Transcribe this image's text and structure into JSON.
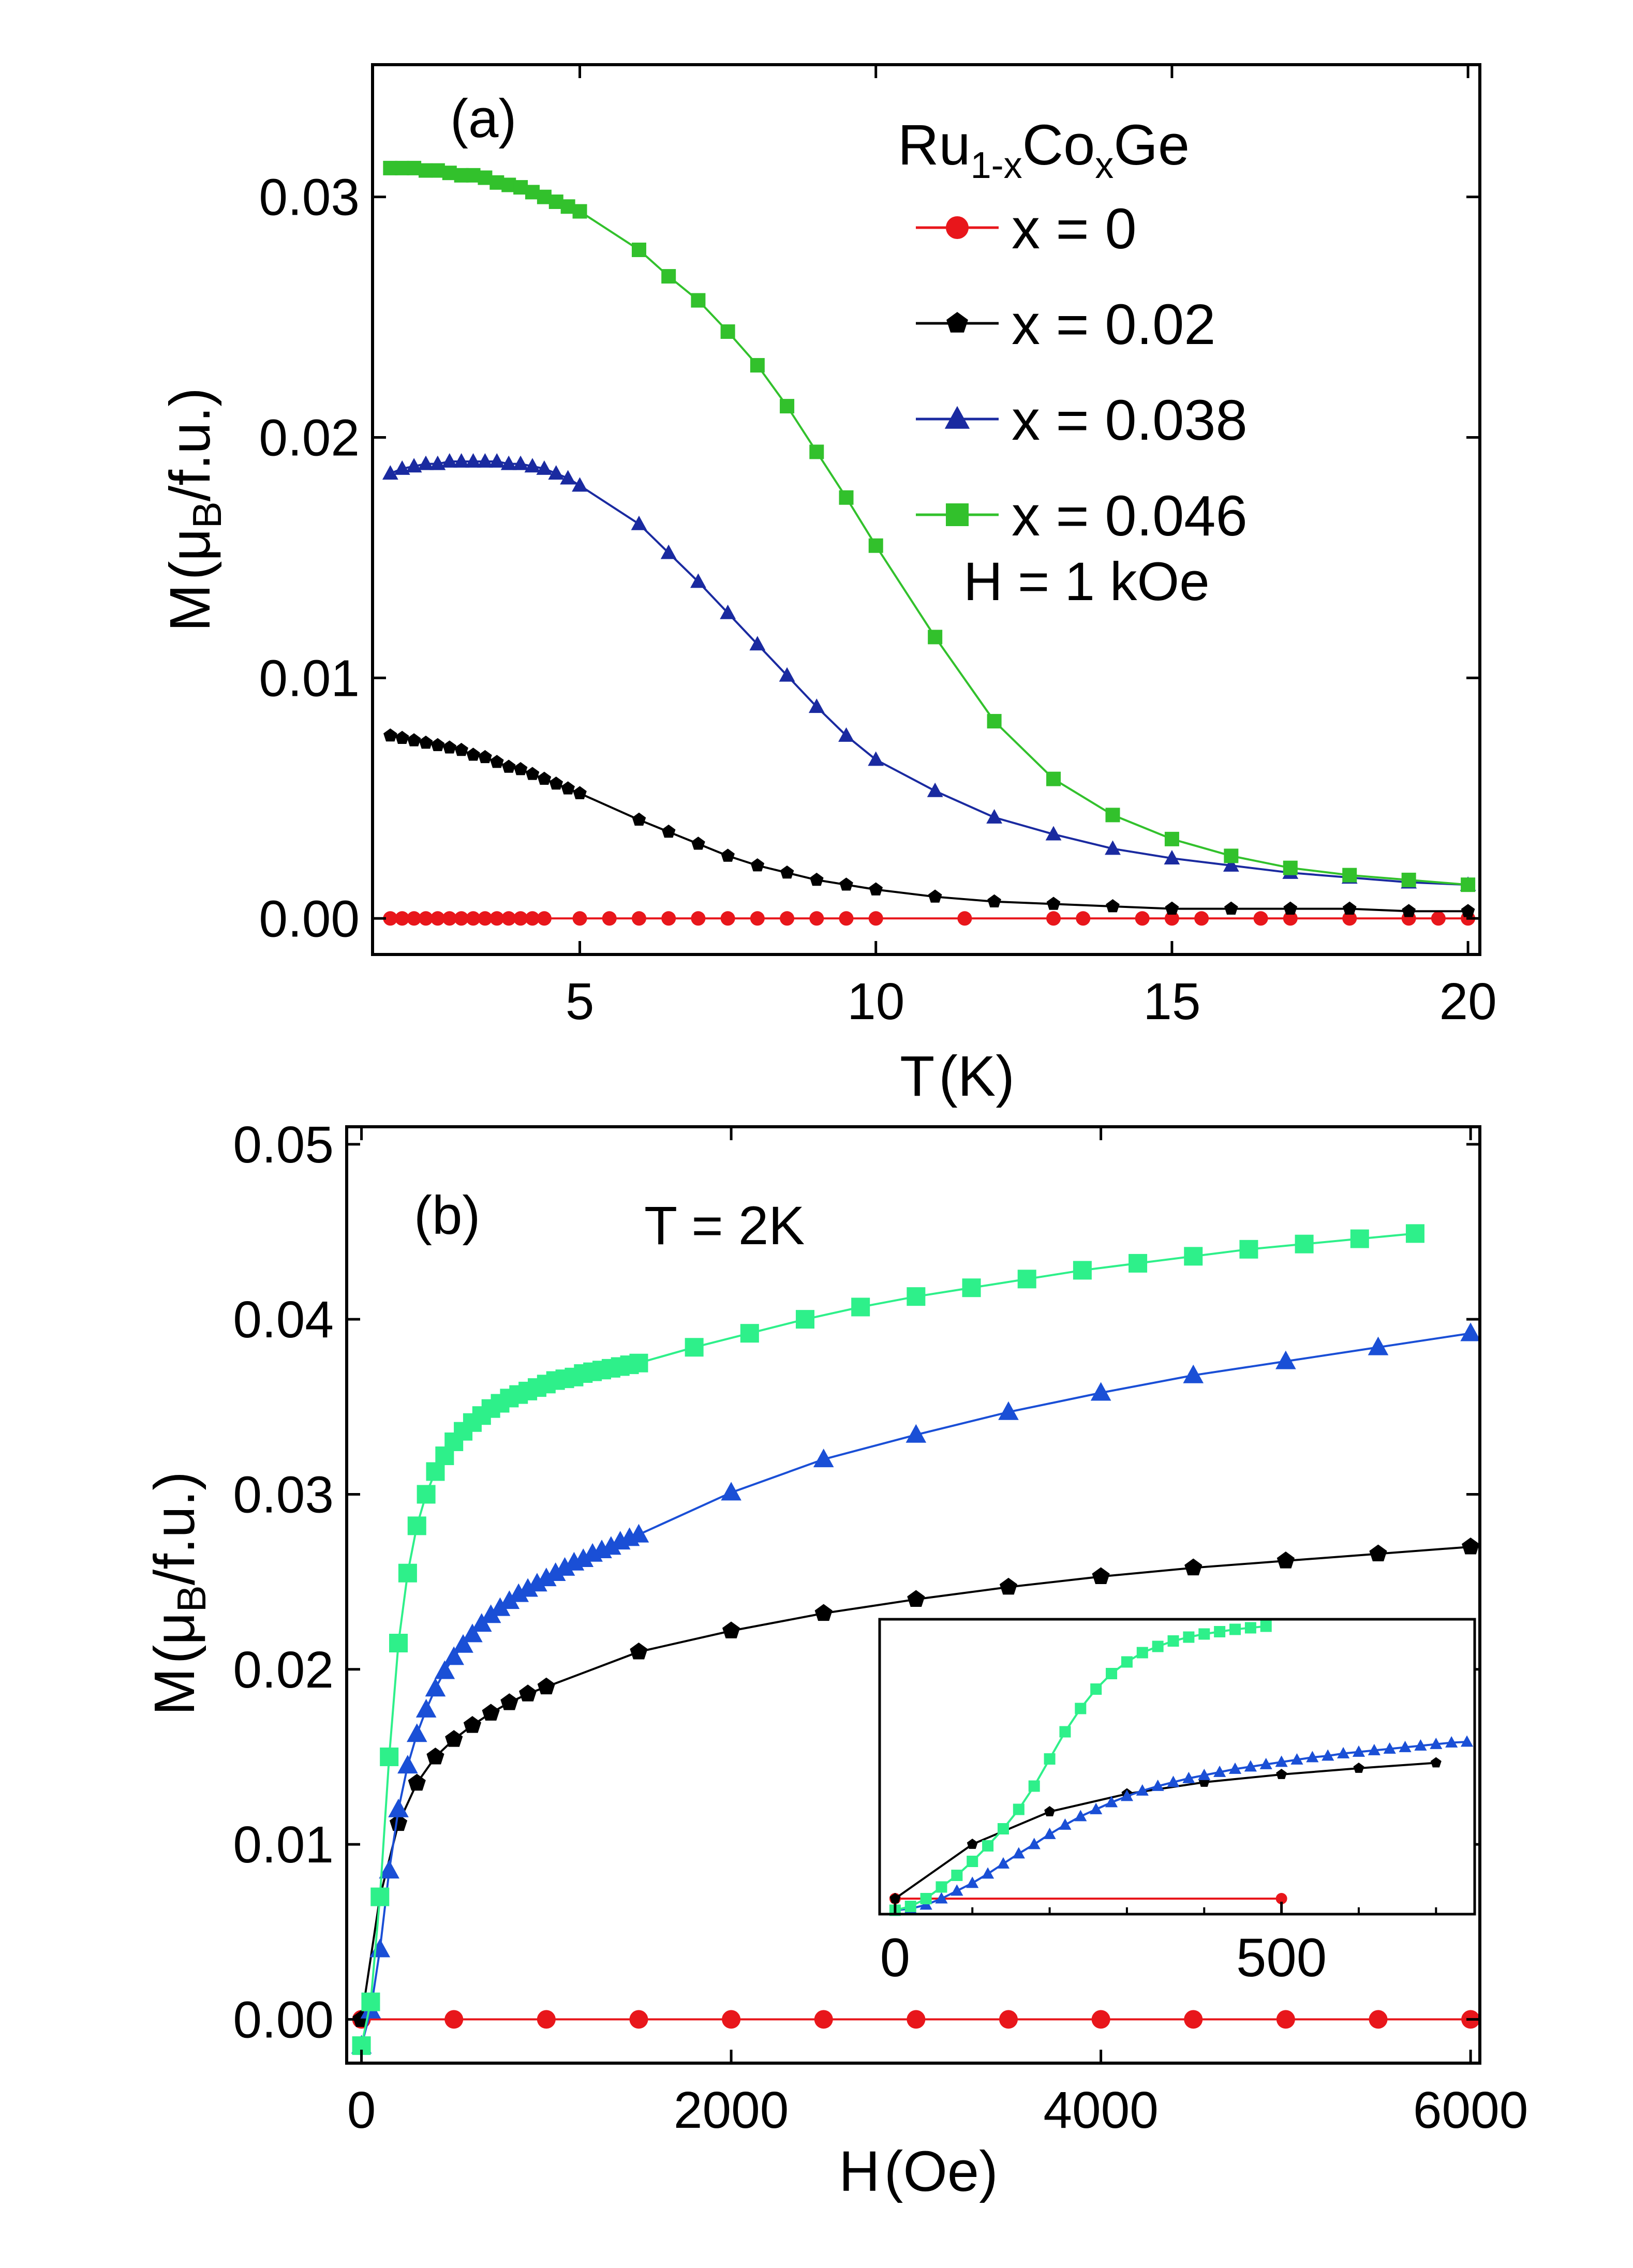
{
  "chart_data": [
    {
      "id": "a",
      "type": "line",
      "panel_label": "(a)",
      "title": "",
      "xlabel_main": "T",
      "xlabel_unit": "(K)",
      "ylabel": "M(μB/f.u.)",
      "ylabel_prefix": "M",
      "ylabel_unit_pre": "(μ",
      "ylabel_unit_sub": "B",
      "ylabel_unit_post": "/f.u.)",
      "xlim": [
        1.5,
        20.2
      ],
      "ylim": [
        -0.0015,
        0.0355
      ],
      "xticks": [
        5,
        10,
        15,
        20
      ],
      "xtick_labels": [
        "5",
        "10",
        "15",
        "20"
      ],
      "yticks": [
        0.0,
        0.01,
        0.02,
        0.03
      ],
      "ytick_labels": [
        "0.00",
        "0.01",
        "0.02",
        "0.03"
      ],
      "legend_title_main": "Ru",
      "legend_title_sub1": "1-x",
      "legend_title_mid": "Co",
      "legend_title_sub2": "x",
      "legend_title_end": "Ge",
      "legend_position": "top-right",
      "annotation": "H = 1 kOe",
      "series": [
        {
          "name": "x = 0",
          "color": "#e8161b",
          "marker": "circle",
          "x": [
            1.8,
            2.0,
            2.2,
            2.4,
            2.6,
            2.8,
            3.0,
            3.2,
            3.4,
            3.6,
            3.8,
            4.0,
            4.2,
            4.4,
            5.0,
            5.5,
            6.0,
            6.5,
            7.0,
            7.5,
            8.0,
            8.5,
            9.0,
            9.5,
            10.0,
            11.5,
            13.0,
            13.5,
            14.5,
            15.0,
            15.5,
            16.5,
            17.0,
            18.0,
            19.0,
            19.5,
            20.0
          ],
          "y": [
            0,
            0,
            0,
            0,
            0,
            0,
            0,
            0,
            0,
            0,
            0,
            0,
            0,
            0,
            0,
            0,
            0,
            0,
            0,
            0,
            0,
            0,
            0,
            0,
            0,
            0,
            0,
            0,
            0,
            0,
            0,
            0,
            0,
            0,
            0,
            0,
            0
          ]
        },
        {
          "name": "x = 0.02",
          "color": "#000000",
          "marker": "pentagon",
          "x": [
            1.8,
            2.0,
            2.2,
            2.4,
            2.6,
            2.8,
            3.0,
            3.2,
            3.4,
            3.6,
            3.8,
            4.0,
            4.2,
            4.4,
            4.6,
            4.8,
            5.0,
            6.0,
            6.5,
            7.0,
            7.5,
            8.0,
            8.5,
            9.0,
            9.5,
            10.0,
            11.0,
            12.0,
            13.0,
            14.0,
            15.0,
            16.0,
            17.0,
            18.0,
            19.0,
            20.0
          ],
          "y": [
            0.0076,
            0.0075,
            0.0074,
            0.0073,
            0.0072,
            0.0071,
            0.007,
            0.0068,
            0.0067,
            0.0065,
            0.0063,
            0.0062,
            0.006,
            0.0058,
            0.0056,
            0.0054,
            0.0052,
            0.0041,
            0.0036,
            0.0031,
            0.0026,
            0.0022,
            0.0019,
            0.0016,
            0.0014,
            0.0012,
            0.0009,
            0.0007,
            0.0006,
            0.0005,
            0.0004,
            0.0004,
            0.0004,
            0.0004,
            0.0003,
            0.0003
          ]
        },
        {
          "name": "x = 0.038",
          "color": "#1a2aa0",
          "marker": "triangle",
          "x": [
            1.8,
            2.0,
            2.2,
            2.4,
            2.6,
            2.8,
            3.0,
            3.2,
            3.4,
            3.6,
            3.8,
            4.0,
            4.2,
            4.4,
            4.6,
            4.8,
            5.0,
            6.0,
            6.5,
            7.0,
            7.5,
            8.0,
            8.5,
            9.0,
            9.5,
            10.0,
            11.0,
            12.0,
            13.0,
            14.0,
            15.0,
            16.0,
            17.0,
            18.0,
            19.0,
            20.0
          ],
          "y": [
            0.0185,
            0.0187,
            0.0188,
            0.0189,
            0.0189,
            0.019,
            0.019,
            0.019,
            0.019,
            0.019,
            0.0189,
            0.0189,
            0.0188,
            0.0187,
            0.0185,
            0.0183,
            0.018,
            0.0164,
            0.0152,
            0.014,
            0.0127,
            0.0114,
            0.0101,
            0.0088,
            0.0076,
            0.0066,
            0.0053,
            0.0042,
            0.0035,
            0.0029,
            0.0025,
            0.0022,
            0.0019,
            0.0017,
            0.0015,
            0.0014
          ]
        },
        {
          "name": "x = 0.046",
          "color": "#32c12c",
          "marker": "square",
          "x": [
            1.8,
            2.0,
            2.2,
            2.4,
            2.6,
            2.8,
            3.0,
            3.2,
            3.4,
            3.6,
            3.8,
            4.0,
            4.2,
            4.4,
            4.6,
            4.8,
            5.0,
            6.0,
            6.5,
            7.0,
            7.5,
            8.0,
            8.5,
            9.0,
            9.5,
            10.0,
            11.0,
            12.0,
            13.0,
            14.0,
            15.0,
            16.0,
            17.0,
            18.0,
            19.0,
            20.0
          ],
          "y": [
            0.0312,
            0.0312,
            0.0312,
            0.0311,
            0.0311,
            0.031,
            0.0309,
            0.0309,
            0.0308,
            0.0306,
            0.0305,
            0.0304,
            0.0302,
            0.03,
            0.0298,
            0.0296,
            0.0294,
            0.0278,
            0.0267,
            0.0257,
            0.0244,
            0.023,
            0.0213,
            0.0194,
            0.0175,
            0.0155,
            0.0117,
            0.0082,
            0.0058,
            0.0043,
            0.0033,
            0.0026,
            0.0021,
            0.0018,
            0.0016,
            0.0014
          ]
        }
      ]
    },
    {
      "id": "b",
      "type": "line",
      "panel_label": "(b)",
      "title": "",
      "xlabel_main": "H",
      "xlabel_unit": "(Oe)",
      "ylabel": "M(μB/f.u.)",
      "ylabel_prefix": "M",
      "ylabel_unit_pre": "(μ",
      "ylabel_unit_sub": "B",
      "ylabel_unit_post": "/f.u.)",
      "xlim": [
        -80,
        6050
      ],
      "ylim": [
        -0.0025,
        0.051
      ],
      "xticks": [
        0,
        2000,
        4000,
        6000
      ],
      "xtick_labels": [
        "0",
        "2000",
        "4000",
        "6000"
      ],
      "yticks": [
        0.0,
        0.01,
        0.02,
        0.03,
        0.04,
        0.05
      ],
      "ytick_labels": [
        "0.00",
        "0.01",
        "0.02",
        "0.03",
        "0.04",
        "0.05"
      ],
      "annotation": "T = 2K",
      "series": [
        {
          "name": "x = 0",
          "color": "#e8161b",
          "marker": "circle",
          "x": [
            0,
            500,
            1000,
            1500,
            2000,
            2500,
            3000,
            3500,
            4000,
            4500,
            5000,
            5500,
            6000
          ],
          "y": [
            0,
            0,
            0,
            0,
            0,
            0,
            0,
            0,
            0,
            0,
            0,
            0,
            0
          ]
        },
        {
          "name": "x = 0.02",
          "color": "#000000",
          "marker": "pentagon",
          "x": [
            0,
            100,
            200,
            300,
            400,
            500,
            600,
            700,
            800,
            900,
            1000,
            1500,
            2000,
            2500,
            3000,
            3500,
            4000,
            4500,
            5000,
            5500,
            6000
          ],
          "y": [
            0.0,
            0.007,
            0.0112,
            0.0135,
            0.015,
            0.016,
            0.0168,
            0.0175,
            0.0181,
            0.0186,
            0.019,
            0.021,
            0.0222,
            0.0232,
            0.024,
            0.0247,
            0.0253,
            0.0258,
            0.0262,
            0.0266,
            0.027
          ]
        },
        {
          "name": "x = 0.038",
          "color": "#1a4fd6",
          "marker": "triangle",
          "x": [
            0,
            50,
            100,
            150,
            200,
            250,
            300,
            350,
            400,
            450,
            500,
            550,
            600,
            650,
            700,
            750,
            800,
            850,
            900,
            950,
            1000,
            1050,
            1100,
            1150,
            1200,
            1250,
            1300,
            1350,
            1400,
            1450,
            1500,
            2000,
            2500,
            3000,
            3500,
            4000,
            4500,
            5000,
            5500,
            6000
          ],
          "y": [
            -0.0015,
            0.0005,
            0.004,
            0.0085,
            0.012,
            0.0145,
            0.0163,
            0.0177,
            0.0189,
            0.0199,
            0.0207,
            0.0214,
            0.022,
            0.0226,
            0.0231,
            0.0235,
            0.0239,
            0.0243,
            0.0246,
            0.0249,
            0.0252,
            0.0255,
            0.0258,
            0.0261,
            0.0263,
            0.0266,
            0.0268,
            0.027,
            0.0273,
            0.0275,
            0.0277,
            0.0301,
            0.032,
            0.0334,
            0.0347,
            0.0358,
            0.0368,
            0.0376,
            0.0384,
            0.0392
          ]
        },
        {
          "name": "x = 0.046",
          "color": "#2ef08a",
          "marker": "square",
          "x": [
            0,
            50,
            100,
            150,
            200,
            250,
            300,
            350,
            400,
            450,
            500,
            550,
            600,
            650,
            700,
            750,
            800,
            850,
            900,
            950,
            1000,
            1050,
            1100,
            1150,
            1200,
            1250,
            1300,
            1350,
            1400,
            1450,
            1500,
            1800,
            2100,
            2400,
            2700,
            3000,
            3300,
            3600,
            3900,
            4200,
            4500,
            4800,
            5100,
            5400,
            5700
          ],
          "y": [
            -0.0015,
            0.001,
            0.007,
            0.015,
            0.0215,
            0.0255,
            0.0282,
            0.03,
            0.0313,
            0.0322,
            0.033,
            0.0336,
            0.0341,
            0.0345,
            0.0349,
            0.0352,
            0.0355,
            0.0357,
            0.0359,
            0.0361,
            0.0363,
            0.0365,
            0.0366,
            0.0367,
            0.0369,
            0.037,
            0.0371,
            0.0372,
            0.0373,
            0.0374,
            0.0375,
            0.0384,
            0.0392,
            0.04,
            0.0407,
            0.0413,
            0.0418,
            0.0423,
            0.0428,
            0.0432,
            0.0436,
            0.044,
            0.0443,
            0.0446,
            0.0449
          ]
        }
      ],
      "inset": {
        "xlim": [
          -20,
          750
        ],
        "ylim": [
          -0.002,
          0.036
        ],
        "xticks": [
          0,
          500
        ],
        "xtick_labels": [
          "0",
          "500"
        ],
        "series": [
          {
            "name": "x = 0",
            "color": "#e8161b",
            "marker": "circle",
            "x": [
              0,
              500
            ],
            "y": [
              0,
              0
            ]
          },
          {
            "name": "x = 0.02",
            "color": "#000000",
            "marker": "pentagon",
            "x": [
              0,
              100,
              200,
              300,
              400,
              500,
              600,
              700
            ],
            "y": [
              0.0,
              0.007,
              0.0112,
              0.0135,
              0.015,
              0.016,
              0.0168,
              0.0175
            ]
          },
          {
            "name": "x = 0.038",
            "color": "#1a4fd6",
            "marker": "triangle",
            "x": [
              0,
              20,
              40,
              60,
              80,
              100,
              120,
              140,
              160,
              180,
              200,
              220,
              240,
              260,
              280,
              300,
              320,
              340,
              360,
              380,
              400,
              420,
              440,
              460,
              480,
              500,
              520,
              540,
              560,
              580,
              600,
              620,
              640,
              660,
              680,
              700,
              720,
              740
            ],
            "y": [
              -0.0015,
              -0.0013,
              -0.0008,
              0.0,
              0.001,
              0.002,
              0.0032,
              0.0045,
              0.0058,
              0.007,
              0.0083,
              0.0095,
              0.0106,
              0.0115,
              0.0124,
              0.0132,
              0.0139,
              0.0145,
              0.015,
              0.0155,
              0.0159,
              0.0163,
              0.0167,
              0.017,
              0.0173,
              0.0176,
              0.0179,
              0.0182,
              0.0184,
              0.0187,
              0.0189,
              0.0191,
              0.0193,
              0.0195,
              0.0197,
              0.0199,
              0.0201,
              0.0202
            ]
          },
          {
            "name": "x = 0.046",
            "color": "#2ef08a",
            "marker": "square",
            "x": [
              0,
              20,
              40,
              60,
              80,
              100,
              120,
              140,
              160,
              180,
              200,
              220,
              240,
              260,
              280,
              300,
              320,
              340,
              360,
              380,
              400,
              420,
              440,
              460,
              480
            ],
            "y": [
              -0.0015,
              -0.001,
              0.0,
              0.0015,
              0.003,
              0.0048,
              0.0068,
              0.009,
              0.0115,
              0.0145,
              0.018,
              0.0215,
              0.0245,
              0.027,
              0.029,
              0.0305,
              0.0317,
              0.0325,
              0.0332,
              0.0337,
              0.0341,
              0.0344,
              0.0347,
              0.0349,
              0.0351
            ]
          }
        ]
      }
    }
  ]
}
